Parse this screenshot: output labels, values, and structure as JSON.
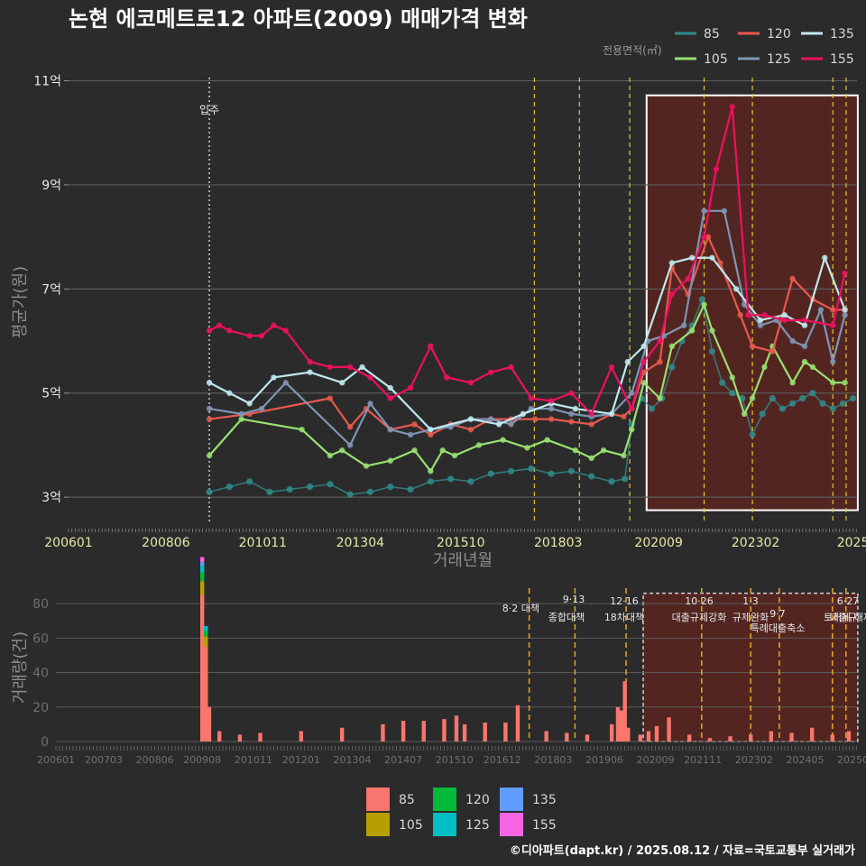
{
  "title": "논현 에코메트로12 아파트(2009) 매매가격 변화",
  "footer": "©디아파트(dapt.kr) / 2025.08.12 / 자료=국토교통부 실거래가",
  "legend_title": "전용면적(㎡)",
  "colors": {
    "85": "#2f8c8c",
    "105": "#98e070",
    "120": "#e8584f",
    "125": "#7f95b5",
    "135": "#bfe9ef",
    "155": "#ee1060"
  },
  "bar_colors": {
    "85": "#f8766d",
    "105": "#b79f00",
    "120": "#00ba38",
    "125": "#00bfc4",
    "135": "#619cff",
    "155": "#f564e3"
  },
  "chart_data": [
    {
      "type": "line",
      "title": "논현 에코메트로12 아파트(2009) 매매가격 변화",
      "xlabel": "거래년월",
      "ylabel": "평균가(원)",
      "ylim": [
        2.5,
        11.2
      ],
      "y_ticks": [
        "3억",
        "5억",
        "7억",
        "9억",
        "11억"
      ],
      "y_tick_values": [
        3,
        5,
        7,
        9,
        11
      ],
      "x_ticks": [
        "200601",
        "200806",
        "201011",
        "201304",
        "201510",
        "201803",
        "202009",
        "202302",
        "2025"
      ],
      "x_tick_values": [
        2006.0,
        2008.42,
        2010.83,
        2013.25,
        2015.75,
        2018.17,
        2020.67,
        2023.08,
        2025.5
      ],
      "xlim": [
        2006.0,
        2025.6
      ],
      "annotation": "입주",
      "annotation_x": 2009.5,
      "policy_lines_x": [
        2017.58,
        2018.7,
        2019.95,
        2021.8,
        2023.0,
        2025.0,
        2025.33
      ],
      "highlight_box": [
        2020.37,
        2025.62,
        2.75,
        10.72
      ],
      "series": [
        {
          "name": "85",
          "x": [
            2009.5,
            2010.0,
            2010.5,
            2011.0,
            2011.5,
            2012.0,
            2012.5,
            2013.0,
            2013.5,
            2014.0,
            2014.5,
            2015.0,
            2015.5,
            2016.0,
            2016.5,
            2017.0,
            2017.5,
            2018.0,
            2018.5,
            2019.0,
            2019.5,
            2019.83,
            2020.0,
            2020.25,
            2020.5,
            2020.75,
            2021.0,
            2021.25,
            2021.5,
            2021.75,
            2022.0,
            2022.25,
            2022.5,
            2022.75,
            2023.0,
            2023.25,
            2023.5,
            2023.75,
            2024.0,
            2024.25,
            2024.5,
            2024.75,
            2025.0,
            2025.25,
            2025.5
          ],
          "y": [
            3.1,
            3.2,
            3.3,
            3.1,
            3.15,
            3.2,
            3.25,
            3.05,
            3.1,
            3.2,
            3.15,
            3.3,
            3.35,
            3.3,
            3.45,
            3.5,
            3.55,
            3.45,
            3.5,
            3.4,
            3.3,
            3.35,
            4.4,
            4.9,
            4.7,
            4.9,
            5.5,
            6.0,
            6.3,
            6.8,
            5.8,
            5.2,
            5.0,
            4.9,
            4.2,
            4.6,
            4.9,
            4.7,
            4.8,
            4.9,
            5.0,
            4.8,
            4.7,
            4.8,
            4.9
          ]
        },
        {
          "name": "105",
          "x": [
            2009.5,
            2010.3,
            2011.8,
            2012.5,
            2012.8,
            2013.4,
            2014.0,
            2014.6,
            2015.0,
            2015.3,
            2015.6,
            2016.2,
            2016.8,
            2017.4,
            2017.9,
            2018.6,
            2019.0,
            2019.3,
            2019.8,
            2020.0,
            2020.3,
            2020.7,
            2021.0,
            2021.5,
            2021.8,
            2022.0,
            2022.5,
            2022.8,
            2023.0,
            2023.3,
            2023.5,
            2024.0,
            2024.3,
            2024.5,
            2025.0,
            2025.3
          ],
          "y": [
            3.8,
            4.5,
            4.3,
            3.8,
            3.9,
            3.6,
            3.7,
            3.9,
            3.5,
            3.9,
            3.8,
            4.0,
            4.1,
            3.95,
            4.1,
            3.9,
            3.75,
            3.9,
            3.8,
            4.3,
            5.2,
            4.9,
            5.9,
            6.2,
            6.7,
            6.2,
            5.3,
            4.6,
            4.9,
            5.5,
            5.9,
            5.2,
            5.6,
            5.5,
            5.2,
            5.2
          ]
        },
        {
          "name": "120",
          "x": [
            2009.5,
            2010.5,
            2012.5,
            2013.0,
            2013.4,
            2014.0,
            2014.6,
            2015.0,
            2015.5,
            2016.0,
            2016.5,
            2017.0,
            2017.6,
            2018.0,
            2018.5,
            2019.0,
            2019.5,
            2019.8,
            2020.0,
            2020.3,
            2020.7,
            2021.0,
            2021.4,
            2021.9,
            2022.2,
            2022.7,
            2023.0,
            2023.5,
            2024.0,
            2024.5,
            2025.0,
            2025.3
          ],
          "y": [
            4.5,
            4.6,
            4.9,
            4.35,
            4.7,
            4.3,
            4.4,
            4.2,
            4.4,
            4.3,
            4.5,
            4.5,
            4.5,
            4.5,
            4.45,
            4.4,
            4.6,
            4.55,
            4.7,
            5.4,
            5.6,
            7.4,
            6.9,
            8.0,
            7.5,
            6.5,
            5.9,
            5.8,
            7.2,
            6.8,
            6.6,
            6.6
          ]
        },
        {
          "name": "125",
          "x": [
            2009.5,
            2010.3,
            2010.8,
            2011.4,
            2013.0,
            2013.5,
            2014.0,
            2014.5,
            2015.0,
            2015.5,
            2016.0,
            2016.5,
            2017.0,
            2017.5,
            2018.0,
            2018.5,
            2019.0,
            2019.5,
            2020.0,
            2020.4,
            2020.8,
            2021.3,
            2021.8,
            2022.3,
            2022.8,
            2023.2,
            2023.6,
            2024.0,
            2024.3,
            2024.7,
            2025.0,
            2025.3
          ],
          "y": [
            4.7,
            4.6,
            4.7,
            5.2,
            4.0,
            4.8,
            4.3,
            4.2,
            4.3,
            4.35,
            4.5,
            4.5,
            4.4,
            4.7,
            4.7,
            4.6,
            4.55,
            4.6,
            5.0,
            6.0,
            6.1,
            6.3,
            8.5,
            8.5,
            6.7,
            6.3,
            6.4,
            6.0,
            5.9,
            6.6,
            5.6,
            6.5
          ]
        },
        {
          "name": "135",
          "x": [
            2009.5,
            2010.0,
            2010.5,
            2011.1,
            2012.0,
            2012.8,
            2013.3,
            2014.0,
            2015.0,
            2016.0,
            2016.7,
            2017.3,
            2018.0,
            2018.6,
            2019.5,
            2019.9,
            2020.3,
            2021.0,
            2021.5,
            2022.0,
            2022.6,
            2023.2,
            2023.8,
            2024.3,
            2024.8,
            2025.3
          ],
          "y": [
            5.2,
            5.0,
            4.8,
            5.3,
            5.4,
            5.2,
            5.5,
            5.1,
            4.3,
            4.5,
            4.4,
            4.6,
            4.8,
            4.7,
            4.6,
            5.6,
            5.9,
            7.5,
            7.6,
            7.6,
            7.0,
            6.4,
            6.5,
            6.3,
            7.6,
            6.6
          ]
        },
        {
          "name": "155",
          "x": [
            2009.5,
            2009.75,
            2010.0,
            2010.5,
            2010.8,
            2011.1,
            2011.4,
            2012.0,
            2012.5,
            2013.0,
            2013.5,
            2014.0,
            2014.5,
            2015.0,
            2015.4,
            2016.0,
            2016.5,
            2017.0,
            2017.5,
            2018.0,
            2018.5,
            2019.0,
            2019.5,
            2020.0,
            2020.3,
            2020.7,
            2021.0,
            2021.4,
            2021.8,
            2022.1,
            2022.5,
            2022.9,
            2023.3,
            2023.8,
            2024.3,
            2025.0,
            2025.3
          ],
          "y": [
            6.2,
            6.3,
            6.2,
            6.1,
            6.1,
            6.3,
            6.2,
            5.6,
            5.5,
            5.5,
            5.3,
            4.9,
            5.1,
            5.9,
            5.3,
            5.2,
            5.4,
            5.5,
            4.9,
            4.85,
            5.0,
            4.6,
            5.5,
            4.7,
            5.6,
            6.0,
            6.9,
            7.2,
            8.0,
            9.3,
            10.5,
            6.5,
            6.5,
            6.4,
            6.4,
            6.3,
            7.3
          ]
        }
      ]
    },
    {
      "type": "bar",
      "ylabel": "거래량(건)",
      "ylim": [
        0,
        90
      ],
      "y_ticks": [
        "0",
        "20",
        "40",
        "60",
        "80"
      ],
      "y_tick_values": [
        0,
        20,
        40,
        60,
        80
      ],
      "x_ticks": [
        "200601",
        "200703",
        "200806",
        "200908",
        "201011",
        "201201",
        "201304",
        "201407",
        "201510",
        "201612",
        "201803",
        "201906",
        "202009",
        "202111",
        "202302",
        "202405",
        "20250"
      ],
      "x_tick_values": [
        2006.0,
        2007.17,
        2008.42,
        2009.58,
        2010.83,
        2012.0,
        2013.25,
        2014.5,
        2015.75,
        2016.92,
        2018.17,
        2019.42,
        2020.67,
        2021.83,
        2023.08,
        2024.33,
        2025.5
      ],
      "xlim": [
        2006.0,
        2025.6
      ],
      "highlight_box": [
        2020.37,
        2025.62,
        0,
        86
      ],
      "events": [
        {
          "x": 2017.58,
          "date": "8·2",
          "label": "대책"
        },
        {
          "x": 2018.7,
          "date": "9·13",
          "label": "종합대책"
        },
        {
          "x": 2019.95,
          "date": "12·16",
          "label": "18차대책"
        },
        {
          "x": 2021.8,
          "date": "10·26",
          "label": "대출규제강화"
        },
        {
          "x": 2023.0,
          "date": "1·3",
          "label": "규제완화"
        },
        {
          "x": 2023.7,
          "date": "9·7",
          "label": "특례대출축소"
        },
        {
          "x": 2025.0,
          "date": "6·27",
          "label": "토허제 해제"
        },
        {
          "x": 2025.33,
          "date": "",
          "label": "대출규"
        }
      ],
      "series": [
        {
          "name": "85",
          "monthly_total": "see values",
          "x": [
            2009.58,
            2009.67,
            2009.75,
            2010.0,
            2010.5,
            2011.0,
            2012.0,
            2013.0,
            2014.0,
            2014.5,
            2015.0,
            2015.5,
            2015.8,
            2016.0,
            2016.5,
            2017.0,
            2017.3,
            2018.0,
            2018.5,
            2019.0,
            2019.6,
            2019.75,
            2019.83,
            2019.92,
            2020.0,
            2020.3,
            2020.5,
            2020.7,
            2021.0,
            2021.5,
            2022.0,
            2022.5,
            2023.0,
            2023.5,
            2024.0,
            2024.5,
            2025.0,
            2025.4
          ],
          "values": [
            85,
            55,
            20,
            6,
            4,
            5,
            6,
            8,
            10,
            12,
            12,
            13,
            15,
            10,
            11,
            11,
            21,
            6,
            5,
            4,
            10,
            20,
            18,
            35,
            8,
            4,
            6,
            9,
            14,
            4,
            2,
            3,
            4,
            6,
            5,
            8,
            4,
            6
          ]
        },
        {
          "name": "105",
          "x": [
            2009.58,
            2009.67
          ],
          "values": [
            8,
            6
          ]
        },
        {
          "name": "120",
          "x": [
            2009.58,
            2009.67
          ],
          "values": [
            5,
            3
          ]
        },
        {
          "name": "125",
          "x": [
            2009.58,
            2009.67
          ],
          "values": [
            4,
            3
          ]
        },
        {
          "name": "135",
          "x": [
            2009.58
          ],
          "values": [
            2
          ]
        },
        {
          "name": "155",
          "x": [
            2009.58
          ],
          "values": [
            3
          ]
        }
      ]
    }
  ],
  "legend_labels": [
    "85",
    "105",
    "120",
    "125",
    "135",
    "155"
  ]
}
